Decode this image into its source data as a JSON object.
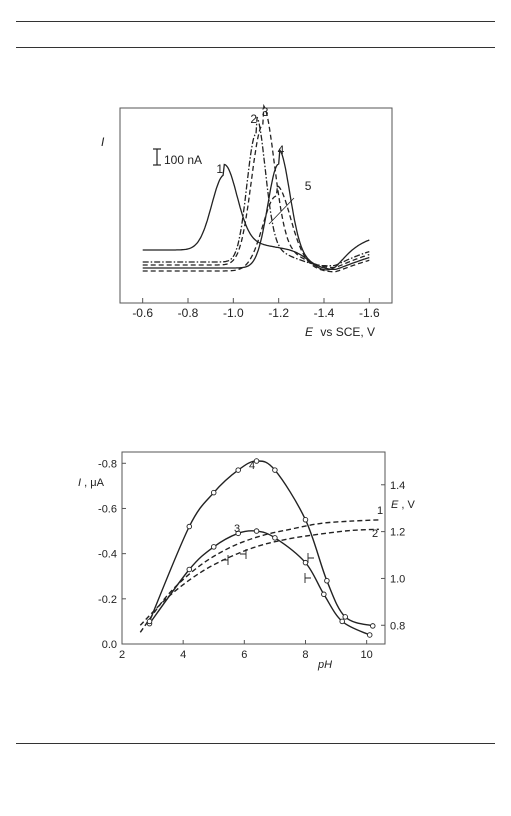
{
  "chart_data": [
    {
      "type": "line",
      "title": "",
      "ylabel": "I",
      "xlabel_italic": "E",
      "xlabel_rest": "vs SCE, V",
      "xlim": [
        -0.5,
        -1.7
      ],
      "x_ticks": [
        -0.6,
        -0.8,
        -1.0,
        -1.2,
        -1.4,
        -1.6
      ],
      "x_tick_labels": [
        "-0.6",
        "-0.8",
        "-1.0",
        "-1.2",
        "-1.4",
        "-1.6"
      ],
      "scale_bar_label": "100 nA",
      "series": [
        {
          "name": "1",
          "style": "solid",
          "peak": -0.96,
          "label_x": -0.94
        },
        {
          "name": "2",
          "style": "dashdot",
          "peak": -1.1,
          "label_x": -1.09
        },
        {
          "name": "3",
          "style": "dashed",
          "peak": -1.13,
          "label_x": -1.14
        },
        {
          "name": "4",
          "style": "solid",
          "peak": -1.2,
          "label_x": -1.21
        },
        {
          "name": "5",
          "style": "dashed",
          "peak": -1.19,
          "label_x": -1.33
        }
      ]
    },
    {
      "type": "line",
      "title": "",
      "xlabel": "pH",
      "ylabel_left_italic": "I",
      "ylabel_left_rest": ", μA",
      "ylabel_right_italic": "E",
      "ylabel_right_rest": ", V",
      "xlim": [
        2,
        10.6
      ],
      "ylim_left": [
        0.0,
        -0.85
      ],
      "ylim_right": [
        0.72,
        1.54
      ],
      "x_ticks": [
        "2",
        "4",
        "6",
        "8",
        "10"
      ],
      "y_left_ticks": [
        "0.0",
        "-0.2",
        "-0.4",
        "-0.6",
        "-0.8"
      ],
      "y_right_ticks": [
        "0.8",
        "1.0",
        "1.2",
        "1.4"
      ],
      "series": [
        {
          "name": "1",
          "axis": "right",
          "style": "dashed",
          "x": [
            2.6,
            3.5,
            4.5,
            5.5,
            6.5,
            7.5,
            8.5,
            9.5,
            10.4
          ],
          "y": [
            0.77,
            0.93,
            1.05,
            1.13,
            1.18,
            1.21,
            1.235,
            1.245,
            1.25
          ]
        },
        {
          "name": "2",
          "axis": "right",
          "style": "dashed",
          "x": [
            2.6,
            3.5,
            4.5,
            5.5,
            6.5,
            7.5,
            8.5,
            9.5,
            10.4
          ],
          "y": [
            0.8,
            0.92,
            1.02,
            1.09,
            1.14,
            1.17,
            1.19,
            1.205,
            1.21
          ]
        },
        {
          "name": "3",
          "axis": "left",
          "style": "solid",
          "x": [
            2.9,
            4.2,
            5.0,
            5.8,
            6.4,
            7.0,
            8.0,
            8.6,
            9.2,
            10.1
          ],
          "y": [
            -0.09,
            -0.33,
            -0.43,
            -0.49,
            -0.5,
            -0.47,
            -0.36,
            -0.22,
            -0.1,
            -0.04
          ]
        },
        {
          "name": "4",
          "axis": "left",
          "style": "solid",
          "x": [
            2.9,
            4.2,
            5.0,
            5.8,
            6.4,
            7.0,
            8.0,
            8.7,
            9.3,
            10.2
          ],
          "y": [
            -0.1,
            -0.52,
            -0.67,
            -0.77,
            -0.81,
            -0.77,
            -0.55,
            -0.28,
            -0.12,
            -0.08
          ]
        }
      ]
    }
  ]
}
